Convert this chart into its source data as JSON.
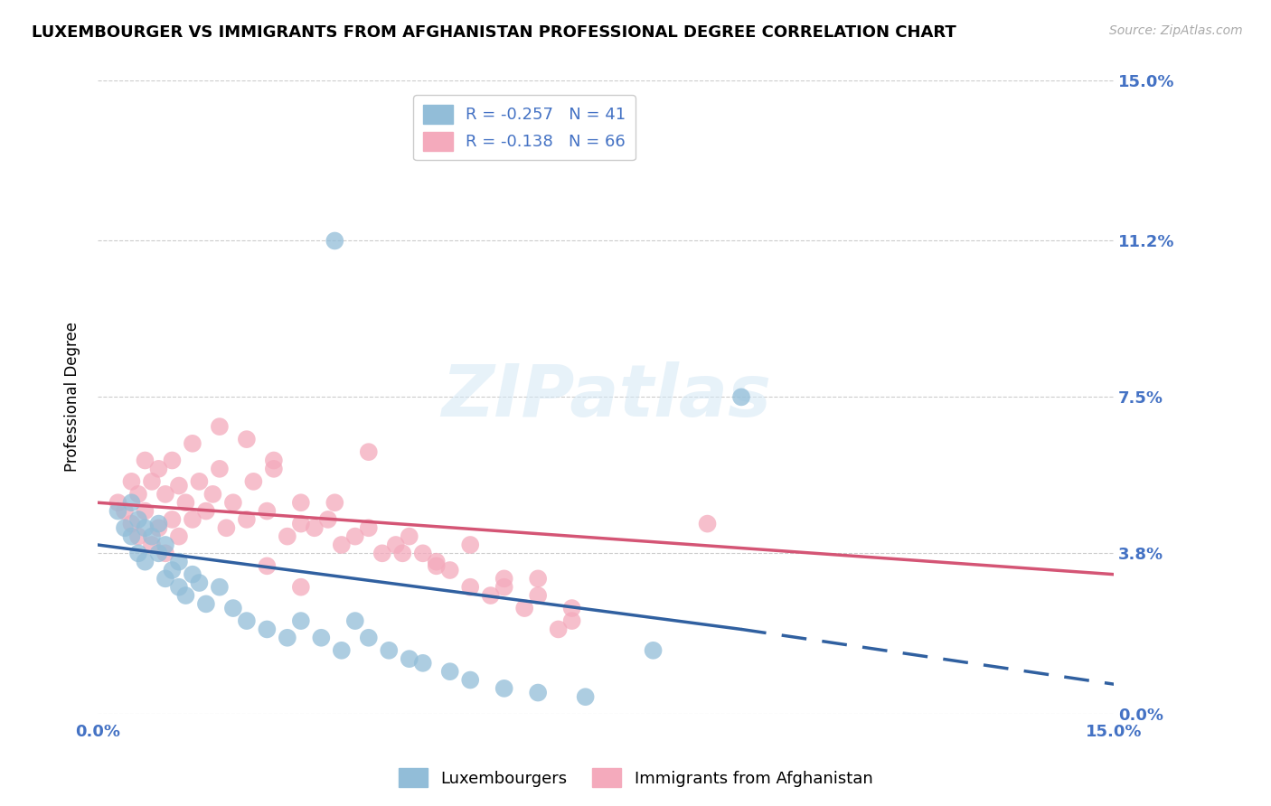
{
  "title": "LUXEMBOURGER VS IMMIGRANTS FROM AFGHANISTAN PROFESSIONAL DEGREE CORRELATION CHART",
  "source_text": "Source: ZipAtlas.com",
  "ylabel": "Professional Degree",
  "legend_blue_label": "Luxembourgers",
  "legend_pink_label": "Immigrants from Afghanistan",
  "r_blue": -0.257,
  "n_blue": 41,
  "r_pink": -0.138,
  "n_pink": 66,
  "xlim": [
    0.0,
    0.15
  ],
  "ylim": [
    0.0,
    0.15
  ],
  "ytick_labels": [
    "0.0%",
    "3.8%",
    "7.5%",
    "11.2%",
    "15.0%"
  ],
  "ytick_values": [
    0.0,
    0.038,
    0.075,
    0.112,
    0.15
  ],
  "xtick_labels": [
    "0.0%",
    "15.0%"
  ],
  "xtick_values": [
    0.0,
    0.15
  ],
  "blue_color": "#92BDD8",
  "pink_color": "#F4AABC",
  "blue_line_color": "#3060A0",
  "pink_line_color": "#D45575",
  "right_axis_label_color": "#4472C4",
  "watermark_text": "ZIPatlas",
  "blue_scatter_x": [
    0.003,
    0.004,
    0.005,
    0.005,
    0.006,
    0.006,
    0.007,
    0.007,
    0.008,
    0.009,
    0.009,
    0.01,
    0.01,
    0.011,
    0.012,
    0.012,
    0.013,
    0.014,
    0.015,
    0.016,
    0.018,
    0.02,
    0.022,
    0.025,
    0.028,
    0.03,
    0.033,
    0.036,
    0.038,
    0.04,
    0.043,
    0.046,
    0.048,
    0.052,
    0.055,
    0.06,
    0.065,
    0.072,
    0.082,
    0.035,
    0.095
  ],
  "blue_scatter_y": [
    0.048,
    0.044,
    0.05,
    0.042,
    0.046,
    0.038,
    0.044,
    0.036,
    0.042,
    0.045,
    0.038,
    0.04,
    0.032,
    0.034,
    0.03,
    0.036,
    0.028,
    0.033,
    0.031,
    0.026,
    0.03,
    0.025,
    0.022,
    0.02,
    0.018,
    0.022,
    0.018,
    0.015,
    0.022,
    0.018,
    0.015,
    0.013,
    0.012,
    0.01,
    0.008,
    0.006,
    0.005,
    0.004,
    0.015,
    0.112,
    0.075
  ],
  "pink_scatter_x": [
    0.003,
    0.004,
    0.005,
    0.005,
    0.006,
    0.006,
    0.007,
    0.007,
    0.008,
    0.008,
    0.009,
    0.009,
    0.01,
    0.01,
    0.011,
    0.011,
    0.012,
    0.012,
    0.013,
    0.014,
    0.015,
    0.016,
    0.017,
    0.018,
    0.019,
    0.02,
    0.022,
    0.023,
    0.025,
    0.026,
    0.028,
    0.03,
    0.032,
    0.034,
    0.036,
    0.038,
    0.04,
    0.042,
    0.044,
    0.046,
    0.048,
    0.05,
    0.052,
    0.055,
    0.058,
    0.06,
    0.063,
    0.065,
    0.068,
    0.07,
    0.014,
    0.018,
    0.022,
    0.026,
    0.03,
    0.035,
    0.04,
    0.045,
    0.05,
    0.055,
    0.06,
    0.065,
    0.07,
    0.09,
    0.025,
    0.03
  ],
  "pink_scatter_y": [
    0.05,
    0.048,
    0.055,
    0.045,
    0.052,
    0.042,
    0.06,
    0.048,
    0.055,
    0.04,
    0.058,
    0.044,
    0.052,
    0.038,
    0.06,
    0.046,
    0.054,
    0.042,
    0.05,
    0.046,
    0.055,
    0.048,
    0.052,
    0.058,
    0.044,
    0.05,
    0.046,
    0.055,
    0.048,
    0.058,
    0.042,
    0.05,
    0.044,
    0.046,
    0.04,
    0.042,
    0.044,
    0.038,
    0.04,
    0.042,
    0.038,
    0.036,
    0.034,
    0.03,
    0.028,
    0.03,
    0.025,
    0.032,
    0.02,
    0.025,
    0.064,
    0.068,
    0.065,
    0.06,
    0.045,
    0.05,
    0.062,
    0.038,
    0.035,
    0.04,
    0.032,
    0.028,
    0.022,
    0.045,
    0.035,
    0.03
  ],
  "blue_line_x0": 0.0,
  "blue_line_y0": 0.04,
  "blue_line_x1": 0.095,
  "blue_line_y1": 0.02,
  "blue_line_dash_x1": 0.15,
  "blue_line_dash_y1": 0.007,
  "pink_line_x0": 0.0,
  "pink_line_y0": 0.05,
  "pink_line_x1": 0.15,
  "pink_line_y1": 0.033
}
